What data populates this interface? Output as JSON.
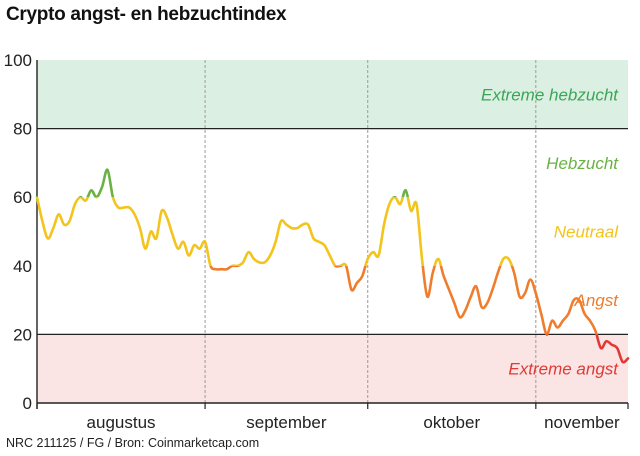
{
  "title": "Crypto angst- en hebzuchtindex",
  "source": "NRC 211125 / FG / Bron: Coinmarketcap.com",
  "colors": {
    "extreme_greed_band": "#dcefe3",
    "extreme_fear_band": "#fbe4e4",
    "extreme_greed_text": "#3aa655",
    "greed_text": "#6ab243",
    "neutral_text": "#f2c41c",
    "fear_text": "#ef7d2d",
    "extreme_fear_text": "#e03a36",
    "axis": "#222222",
    "grid": "#9a9a9a"
  },
  "chart_data": {
    "type": "line",
    "title": "Crypto angst- en hebzuchtindex",
    "xlabel": "",
    "ylabel": "",
    "ylim": [
      0,
      100
    ],
    "yticks": [
      0,
      20,
      40,
      60,
      80,
      100
    ],
    "x_categories": [
      "augustus",
      "september",
      "oktober",
      "november"
    ],
    "grid": "vertical dashed at month boundaries",
    "zones": [
      {
        "label": "Extreme hebzucht",
        "from": 80,
        "to": 100
      },
      {
        "label": "Hebzucht",
        "from": 60,
        "to": 80
      },
      {
        "label": "Neutraal",
        "from": 40,
        "to": 60
      },
      {
        "label": "Angst",
        "from": 20,
        "to": 40
      },
      {
        "label": "Extreme angst",
        "from": 0,
        "to": 20
      }
    ],
    "series": [
      {
        "x_start": "1 augustus",
        "x_end": "21 november",
        "values": [
          60,
          53,
          48,
          51,
          55,
          52,
          53,
          58,
          60,
          59,
          62,
          60,
          63,
          68,
          60,
          57,
          57,
          57,
          55,
          51,
          45,
          50,
          48,
          56,
          54,
          49,
          45,
          47,
          43,
          46,
          45,
          47,
          40,
          39,
          39,
          39,
          40,
          40,
          41,
          44,
          42,
          41,
          41,
          43,
          47,
          53,
          52,
          51,
          51,
          52,
          52,
          48,
          47,
          46,
          43,
          40,
          40,
          40,
          33,
          35,
          37,
          42,
          44,
          43,
          52,
          58,
          60,
          58,
          62,
          56,
          58,
          42,
          31,
          38,
          42,
          37,
          33,
          29,
          25,
          27,
          31,
          34,
          28,
          29,
          33,
          38,
          42,
          42,
          38,
          31,
          32,
          36,
          32,
          26,
          20,
          24,
          22,
          24,
          26,
          30,
          30,
          26,
          24,
          21,
          16,
          18,
          17,
          16,
          12,
          13
        ]
      }
    ]
  }
}
